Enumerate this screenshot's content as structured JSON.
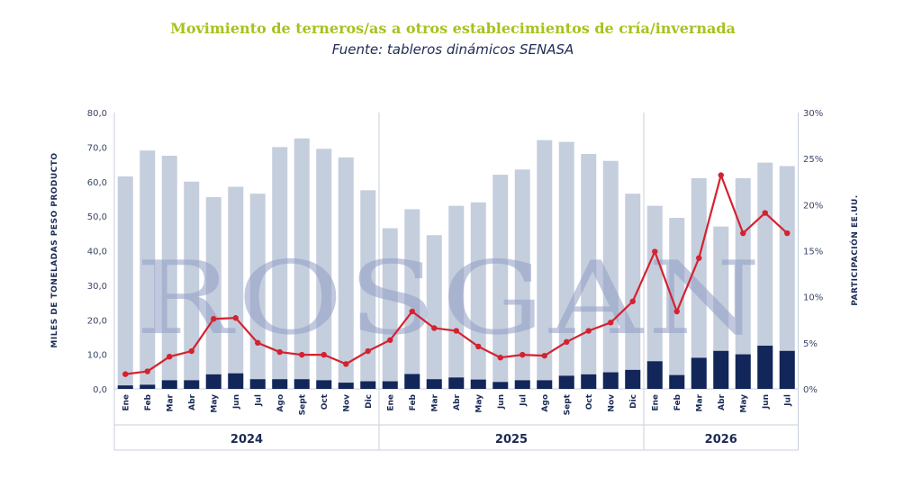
{
  "title": "Movimiento de terneros/as a otros establecimientos de cría/invernada",
  "subtitle": "Fuente: tableros dinámicos SENASA",
  "watermark": "ROSGAN",
  "chart_data": {
    "type": "bar",
    "categories": [
      "Ene",
      "Feb",
      "Mar",
      "Abr",
      "May",
      "Jun",
      "Jul",
      "Ago",
      "Sept",
      "Oct",
      "Nov",
      "Dic",
      "Ene",
      "Feb",
      "Mar",
      "Abr",
      "May",
      "Jun",
      "Jul",
      "Ago",
      "Sept",
      "Oct",
      "Nov",
      "Dic",
      "Ene",
      "Feb",
      "Mar",
      "Abr",
      "May",
      "Jun",
      "Jul"
    ],
    "years": [
      {
        "label": "2024",
        "count": 12
      },
      {
        "label": "2025",
        "count": 12
      },
      {
        "label": "2026",
        "count": 7
      }
    ],
    "series": [
      {
        "kind": "bar",
        "axis": "left",
        "color": "#c5cedd",
        "values": [
          61.5,
          69,
          67.5,
          60,
          55.5,
          58.5,
          56.5,
          70,
          72.5,
          69.5,
          67,
          57.5,
          46.5,
          52,
          44.5,
          53,
          54,
          62,
          63.5,
          72,
          71.5,
          68,
          66,
          56.5,
          53,
          49.5,
          61,
          47,
          61,
          65.5,
          64.5
        ]
      },
      {
        "kind": "bar",
        "axis": "left",
        "color": "#13265a",
        "values": [
          1,
          1.2,
          2.5,
          2.5,
          4.2,
          4.5,
          2.8,
          2.8,
          2.8,
          2.5,
          1.8,
          2.2,
          2.2,
          4.3,
          2.8,
          3.3,
          2.7,
          2,
          2.5,
          2.5,
          3.8,
          4.2,
          4.8,
          5.5,
          8,
          4,
          9,
          11,
          10,
          12.5,
          11
        ]
      },
      {
        "kind": "line",
        "axis": "right",
        "color": "#d42230",
        "values": [
          1.6,
          1.9,
          3.5,
          4.1,
          7.6,
          7.7,
          5,
          4,
          3.7,
          3.7,
          2.7,
          4.1,
          5.3,
          8.4,
          6.6,
          6.3,
          4.6,
          3.4,
          3.7,
          3.6,
          5.1,
          6.3,
          7.2,
          9.5,
          14.9,
          8.4,
          14.2,
          23.2,
          16.9,
          19.1,
          16.9
        ]
      }
    ],
    "yticks_left": [
      "0,0",
      "10,0",
      "20,0",
      "30,0",
      "40,0",
      "50,0",
      "60,0",
      "70,0",
      "80,0"
    ],
    "yticks_right": [
      "0%",
      "5%",
      "10%",
      "15%",
      "20%",
      "25%",
      "30%"
    ],
    "ylim_left": [
      0,
      80
    ],
    "ylim_right": [
      0,
      30
    ],
    "ylabel_left": "MILES DE TONELADAS PESO PRODUCTO",
    "ylabel_right": "PARTICIPACIÓN EE.UU.",
    "grid": "vertical separators between years"
  },
  "colors": {
    "title": "#a6c31c",
    "subtitle": "#1f2d55",
    "axis_text": "#1a2a55"
  }
}
